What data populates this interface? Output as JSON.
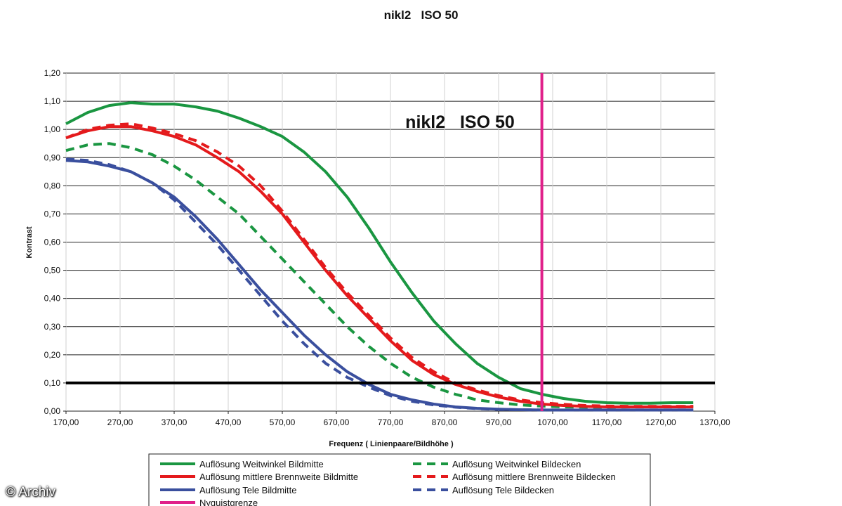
{
  "chart_data": {
    "type": "line",
    "title": "nikl2   ISO 50",
    "inner_title": "nikl2   ISO 50",
    "xlabel": "Frequenz ( Linienpaare/Bildhöhe )",
    "ylabel": "Kontrast",
    "xlim": [
      170,
      1370
    ],
    "ylim": [
      0,
      1.2
    ],
    "x_ticks": [
      "170,00",
      "270,00",
      "370,00",
      "470,00",
      "570,00",
      "670,00",
      "770,00",
      "870,00",
      "970,00",
      "1070,00",
      "1170,00",
      "1270,00",
      "1370,00"
    ],
    "y_ticks": [
      "0,00",
      "0,10",
      "0,20",
      "0,30",
      "0,40",
      "0,50",
      "0,60",
      "0,70",
      "0,80",
      "0,90",
      "1,00",
      "1,10",
      "1,20"
    ],
    "grid": true,
    "legend_position": "bottom",
    "reference_line_y": 0.1,
    "nyquist_x": 1050,
    "series": [
      {
        "name": "Auflösung Weitwinkel Bildmitte",
        "color": "#1a9641",
        "dash": false,
        "x": [
          170,
          210,
          250,
          290,
          330,
          370,
          410,
          450,
          490,
          530,
          570,
          610,
          650,
          690,
          730,
          770,
          810,
          850,
          890,
          930,
          970,
          1010,
          1050,
          1090,
          1130,
          1170,
          1210,
          1250,
          1290,
          1330
        ],
        "y": [
          1.02,
          1.06,
          1.085,
          1.095,
          1.09,
          1.09,
          1.08,
          1.065,
          1.04,
          1.01,
          0.975,
          0.92,
          0.85,
          0.76,
          0.65,
          0.53,
          0.42,
          0.32,
          0.24,
          0.17,
          0.12,
          0.08,
          0.06,
          0.045,
          0.035,
          0.03,
          0.028,
          0.028,
          0.03,
          0.03
        ]
      },
      {
        "name": "Auflösung Weitwinkel Bildecken",
        "color": "#1a9641",
        "dash": true,
        "x": [
          170,
          210,
          250,
          290,
          330,
          370,
          410,
          450,
          490,
          530,
          570,
          610,
          650,
          690,
          730,
          770,
          810,
          850,
          890,
          930,
          970,
          1010,
          1050,
          1090,
          1130,
          1170,
          1210,
          1250,
          1290,
          1330
        ],
        "y": [
          0.925,
          0.945,
          0.95,
          0.935,
          0.91,
          0.87,
          0.82,
          0.76,
          0.7,
          0.62,
          0.54,
          0.46,
          0.38,
          0.3,
          0.23,
          0.17,
          0.12,
          0.085,
          0.06,
          0.04,
          0.03,
          0.022,
          0.018,
          0.015,
          0.014,
          0.014,
          0.015,
          0.015,
          0.016,
          0.017
        ]
      },
      {
        "name": "Auflösung mittlere Brennweite Bildmitte",
        "color": "#e41a1c",
        "dash": false,
        "x": [
          170,
          210,
          250,
          290,
          330,
          370,
          410,
          450,
          490,
          530,
          570,
          610,
          650,
          690,
          730,
          770,
          810,
          850,
          890,
          930,
          970,
          1010,
          1050,
          1090,
          1130,
          1170,
          1210,
          1250,
          1290,
          1330
        ],
        "y": [
          0.97,
          0.995,
          1.01,
          1.01,
          0.995,
          0.975,
          0.945,
          0.9,
          0.85,
          0.78,
          0.7,
          0.6,
          0.5,
          0.41,
          0.33,
          0.25,
          0.18,
          0.13,
          0.095,
          0.07,
          0.05,
          0.035,
          0.025,
          0.02,
          0.017,
          0.015,
          0.015,
          0.015,
          0.015,
          0.015
        ]
      },
      {
        "name": "Auflösung mittlere Brennweite Bildecken",
        "color": "#e41a1c",
        "dash": true,
        "x": [
          170,
          210,
          250,
          290,
          330,
          370,
          410,
          450,
          490,
          530,
          570,
          610,
          650,
          690,
          730,
          770,
          810,
          850,
          890,
          930,
          970,
          1010,
          1050,
          1090,
          1130,
          1170,
          1210,
          1250,
          1290,
          1330
        ],
        "y": [
          0.97,
          1.0,
          1.015,
          1.02,
          1.005,
          0.985,
          0.96,
          0.92,
          0.87,
          0.8,
          0.71,
          0.61,
          0.51,
          0.42,
          0.34,
          0.26,
          0.19,
          0.14,
          0.1,
          0.075,
          0.055,
          0.04,
          0.03,
          0.024,
          0.02,
          0.018,
          0.017,
          0.017,
          0.017,
          0.017
        ]
      },
      {
        "name": "Auflösung Tele Bildmitte",
        "color": "#3a4f9e",
        "dash": false,
        "x": [
          170,
          210,
          250,
          290,
          330,
          370,
          410,
          450,
          490,
          530,
          570,
          610,
          650,
          690,
          730,
          770,
          810,
          850,
          890,
          930,
          970,
          1010,
          1050,
          1090,
          1130,
          1170,
          1210,
          1250,
          1290,
          1330
        ],
        "y": [
          0.89,
          0.885,
          0.87,
          0.85,
          0.81,
          0.76,
          0.69,
          0.61,
          0.52,
          0.43,
          0.35,
          0.27,
          0.2,
          0.14,
          0.095,
          0.06,
          0.04,
          0.025,
          0.015,
          0.01,
          0.007,
          0.005,
          0.004,
          0.004,
          0.004,
          0.004,
          0.004,
          0.004,
          0.004,
          0.004
        ]
      },
      {
        "name": "Auflösung Tele Bildecken",
        "color": "#3a4f9e",
        "dash": true,
        "x": [
          170,
          210,
          250,
          290,
          330,
          370,
          410,
          450,
          490,
          530,
          570,
          610,
          650,
          690,
          730,
          770,
          810,
          850,
          890,
          930,
          970,
          1010,
          1050,
          1090,
          1130,
          1170,
          1210,
          1250,
          1290,
          1330
        ],
        "y": [
          0.895,
          0.89,
          0.875,
          0.85,
          0.81,
          0.75,
          0.67,
          0.59,
          0.5,
          0.41,
          0.32,
          0.24,
          0.17,
          0.12,
          0.085,
          0.055,
          0.035,
          0.022,
          0.014,
          0.009,
          0.006,
          0.005,
          0.004,
          0.004,
          0.004,
          0.004,
          0.004,
          0.004,
          0.004,
          0.004
        ]
      }
    ],
    "nyquist_name": "Nyquistgrenze",
    "nyquist_color": "#e0218a",
    "legend": [
      {
        "label": "Auflösung Weitwinkel Bildmitte",
        "color": "#1a9641",
        "dash": false
      },
      {
        "label": "Auflösung Weitwinkel Bildecken",
        "color": "#1a9641",
        "dash": true
      },
      {
        "label": "Auflösung mittlere Brennweite Bildmitte",
        "color": "#e41a1c",
        "dash": false
      },
      {
        "label": "Auflösung mittlere Brennweite Bildecken",
        "color": "#e41a1c",
        "dash": true
      },
      {
        "label": "Auflösung Tele Bildmitte",
        "color": "#3a4f9e",
        "dash": false
      },
      {
        "label": "Auflösung Tele Bildecken",
        "color": "#3a4f9e",
        "dash": true
      },
      {
        "label": "Nyquistgrenze",
        "color": "#e0218a",
        "dash": false
      }
    ]
  },
  "watermark": "© Archiv"
}
